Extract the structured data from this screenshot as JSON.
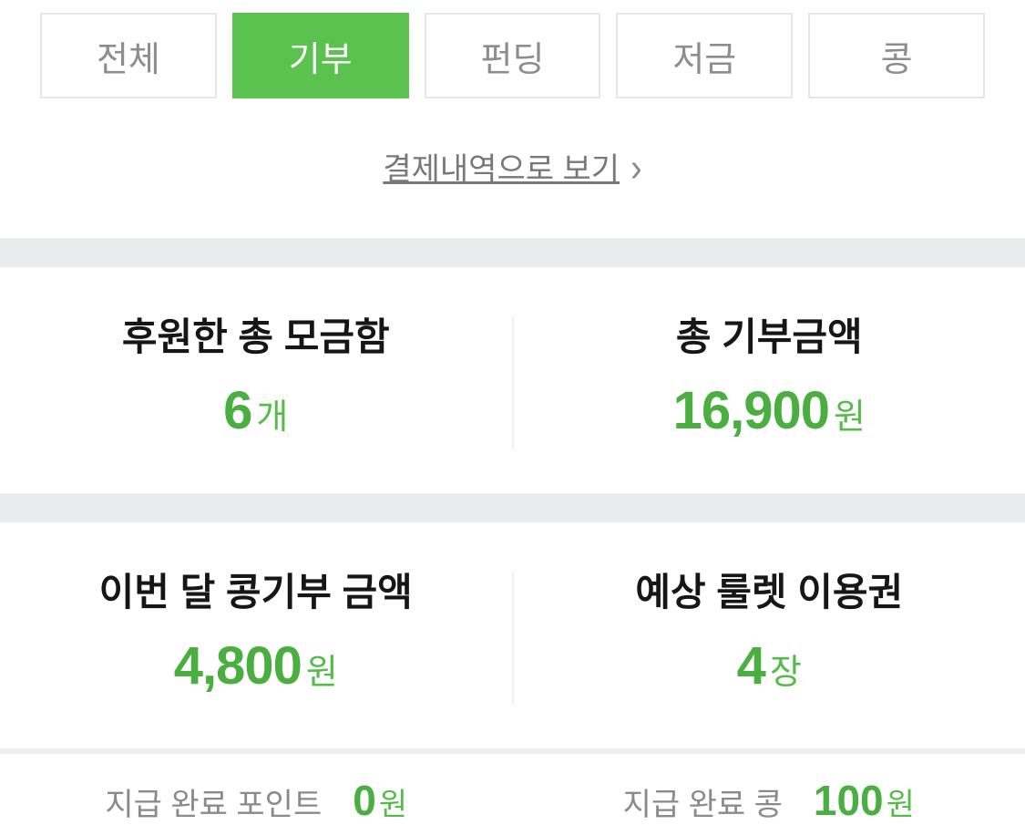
{
  "colors": {
    "active_tab_green": "#5cc24f",
    "value_green": "#4aaf40",
    "unit_green": "#55bb49",
    "section_band_gray": "#eaebed"
  },
  "tabs": [
    {
      "label": "전체",
      "active": false
    },
    {
      "label": "기부",
      "active": true
    },
    {
      "label": "펀딩",
      "active": false
    },
    {
      "label": "저금",
      "active": false
    },
    {
      "label": "콩",
      "active": false
    }
  ],
  "link": {
    "label": "결제내역으로 보기",
    "chevron": "›"
  },
  "stats": {
    "row1": [
      {
        "title": "후원한 총 모금함",
        "value": "6",
        "unit": "개"
      },
      {
        "title": "총 기부금액",
        "value": "16,900",
        "unit": "원"
      }
    ],
    "row2": [
      {
        "title": "이번 달 콩기부 금액",
        "value": "4,800",
        "unit": "원"
      },
      {
        "title": "예상 룰렛 이용권",
        "value": "4",
        "unit": "장"
      }
    ],
    "payout": [
      {
        "label": "지급 완료 포인트",
        "value": "0",
        "unit": "원"
      },
      {
        "label": "지급 완료 콩",
        "value": "100",
        "unit": "원"
      }
    ]
  }
}
